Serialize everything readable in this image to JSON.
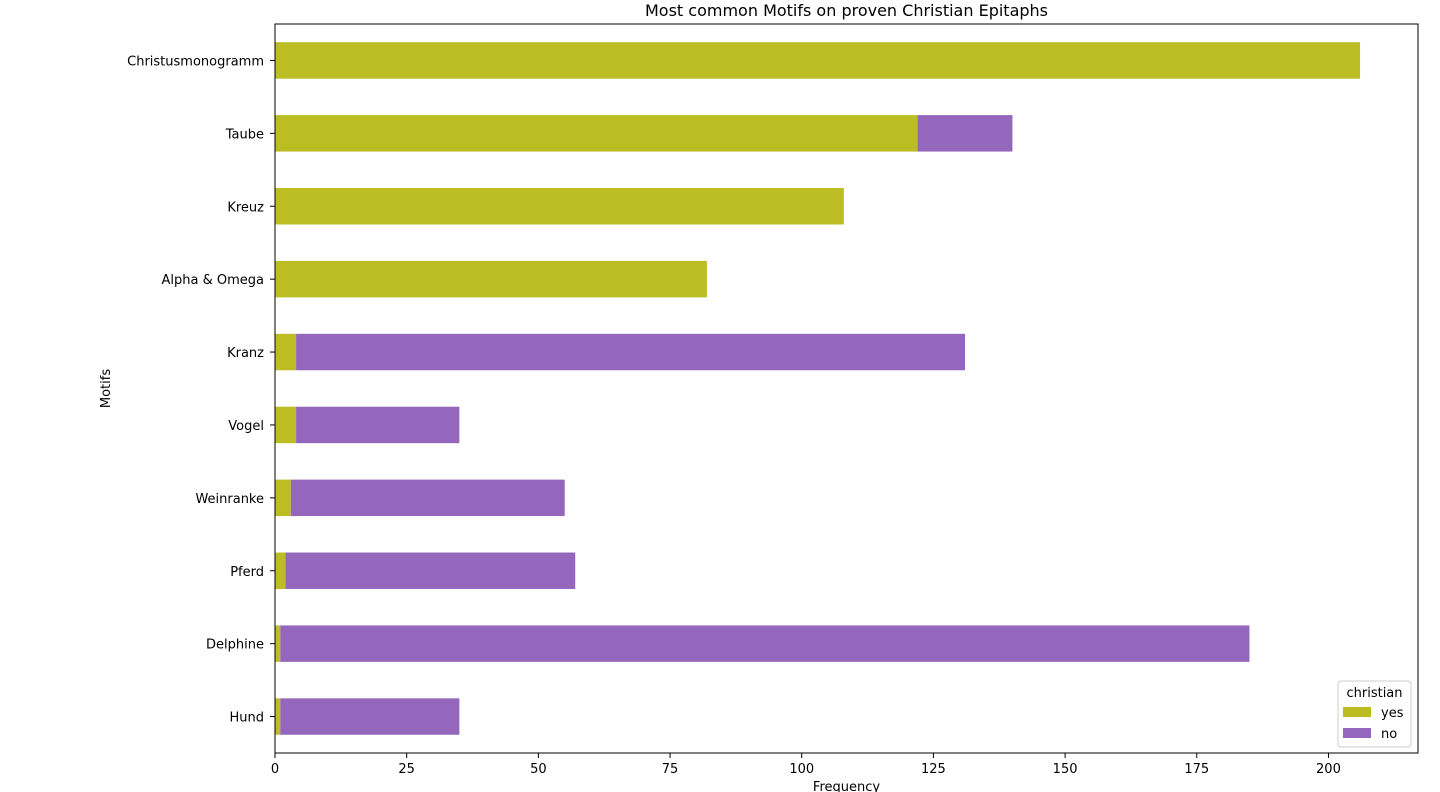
{
  "chart_data": {
    "type": "bar",
    "orientation": "horizontal",
    "stacked": true,
    "title": "Most common Motifs on proven Christian Epitaphs",
    "xlabel": "Frequency",
    "ylabel": "Motifs",
    "xlim": [
      0,
      217
    ],
    "xticks": [
      0,
      25,
      50,
      75,
      100,
      125,
      150,
      175,
      200
    ],
    "categories": [
      "Christusmonogramm",
      "Taube",
      "Kreuz",
      "Alpha & Omega",
      "Kranz",
      "Vogel",
      "Weinranke",
      "Pferd",
      "Delphine",
      "Hund"
    ],
    "series": [
      {
        "name": "yes",
        "color": "#bcbd22",
        "values": [
          206,
          122,
          108,
          82,
          4,
          4,
          3,
          2,
          1,
          1
        ]
      },
      {
        "name": "no",
        "color": "#9467bd",
        "values": [
          0,
          18,
          0,
          0,
          127,
          31,
          52,
          55,
          184,
          34
        ]
      }
    ],
    "legend": {
      "title": "christian",
      "placement": "lower-right"
    },
    "grid": false
  }
}
